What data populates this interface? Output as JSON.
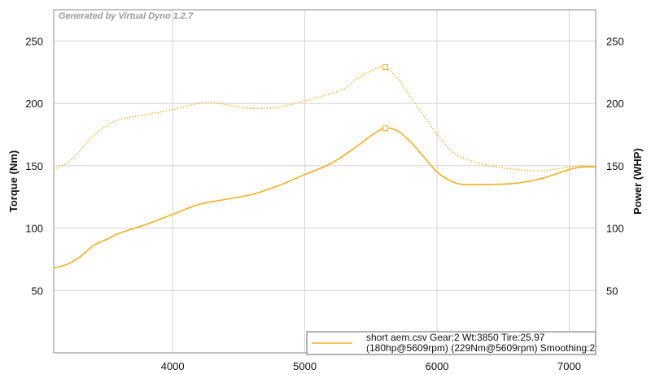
{
  "chart_data": {
    "type": "line",
    "watermark": "Generated by Virtual Dyno 1.2.7",
    "ylabel_left": "Torque (Nm)",
    "ylabel_right": "Power (WHP)",
    "xlim": [
      3100,
      7200
    ],
    "ylim": [
      0,
      275
    ],
    "x_ticks": [
      4000,
      5000,
      6000,
      7000
    ],
    "y_ticks": [
      50,
      100,
      150,
      200,
      250
    ],
    "grid": true,
    "legend_position": "bottom-right",
    "legend_text": [
      "short aem.csv Gear:2 Wt:3850 Tire:25.97",
      "(180hp@5609rpm) (229Nm@5609rpm) Smoothing:2"
    ],
    "line_color": "#f0b020",
    "series": [
      {
        "axis": "right",
        "style": "solid",
        "x": [
          3100,
          3200,
          3300,
          3400,
          3500,
          3600,
          3800,
          4000,
          4200,
          4400,
          4600,
          4800,
          5000,
          5200,
          5400,
          5500,
          5600,
          5700,
          5800,
          5900,
          6000,
          6100,
          6200,
          6400,
          6600,
          6800,
          7000,
          7100,
          7200
        ],
        "values": [
          68,
          71,
          77,
          86,
          91,
          96,
          103,
          111,
          119,
          123,
          127,
          134,
          143,
          152,
          166,
          174,
          180,
          178,
          169,
          157,
          145,
          138,
          135,
          135,
          136,
          140,
          147,
          149,
          149
        ]
      },
      {
        "axis": "left",
        "style": "dotted",
        "x": [
          3100,
          3200,
          3300,
          3400,
          3500,
          3600,
          3800,
          4000,
          4200,
          4300,
          4400,
          4600,
          4800,
          5000,
          5200,
          5300,
          5400,
          5500,
          5600,
          5700,
          5800,
          5900,
          6000,
          6100,
          6200,
          6400,
          6600,
          6800,
          7000,
          7100,
          7200
        ],
        "values": [
          147,
          152,
          162,
          174,
          182,
          187,
          191,
          195,
          200,
          201,
          199,
          196,
          197,
          202,
          208,
          212,
          220,
          226,
          229,
          220,
          205,
          190,
          175,
          163,
          156,
          150,
          147,
          146,
          149,
          150,
          149
        ]
      }
    ],
    "markers": [
      {
        "series": 0,
        "x": 5609,
        "value": 180
      },
      {
        "series": 1,
        "x": 5609,
        "value": 229
      }
    ]
  }
}
